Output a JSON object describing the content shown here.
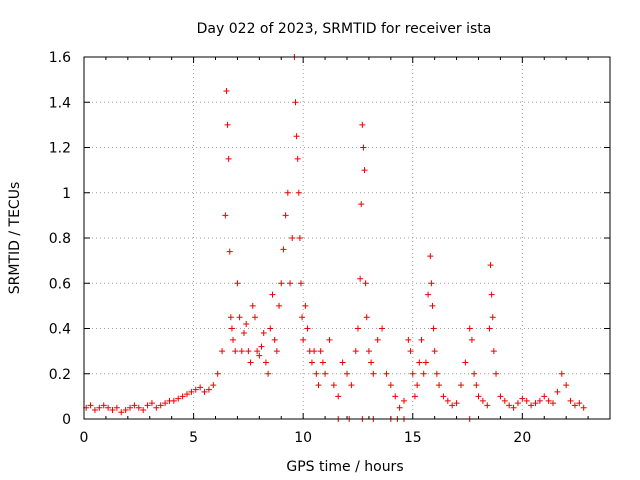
{
  "chart_data": {
    "type": "scatter",
    "title": "Day 022 of 2023, SRMTID for receiver ista",
    "xlabel": "GPS time / hours",
    "ylabel": "SRMTID / TECUs",
    "xlim": [
      0,
      24
    ],
    "ylim": [
      0,
      1.6
    ],
    "x_ticks": [
      "0",
      "5",
      "10",
      "15",
      "20"
    ],
    "y_ticks": [
      "0",
      "0.2",
      "0.4",
      "0.6",
      "0.8",
      "1",
      "1.2",
      "1.4",
      "1.6"
    ],
    "grid": true,
    "marker": "plus",
    "color": "#ee0000",
    "series": [
      {
        "name": "SRMTID",
        "x": [
          0.1,
          0.3,
          0.5,
          0.7,
          0.9,
          1.1,
          1.3,
          1.5,
          1.7,
          1.9,
          2.1,
          2.3,
          2.5,
          2.7,
          2.9,
          3.1,
          3.3,
          3.5,
          3.7,
          3.9,
          4.1,
          4.3,
          4.5,
          4.7,
          4.9,
          5.1,
          5.3,
          5.5,
          5.7,
          5.9,
          6.1,
          6.3,
          6.45,
          6.5,
          6.55,
          6.6,
          6.65,
          6.7,
          6.75,
          6.8,
          6.9,
          7.0,
          7.1,
          7.2,
          7.3,
          7.4,
          7.5,
          7.6,
          7.7,
          7.8,
          7.9,
          8.0,
          8.1,
          8.2,
          8.3,
          8.4,
          8.5,
          8.6,
          8.7,
          8.8,
          8.9,
          9.0,
          9.1,
          9.2,
          9.3,
          9.4,
          9.5,
          9.6,
          9.65,
          9.7,
          9.75,
          9.8,
          9.85,
          9.9,
          9.95,
          10.0,
          10.1,
          10.2,
          10.3,
          10.4,
          10.5,
          10.6,
          10.7,
          10.8,
          10.9,
          11.0,
          11.2,
          11.4,
          11.6,
          11.8,
          12.0,
          12.2,
          12.4,
          12.5,
          12.6,
          12.65,
          12.7,
          12.75,
          12.8,
          12.85,
          12.9,
          13.0,
          13.1,
          13.2,
          13.4,
          13.6,
          13.8,
          14.0,
          14.2,
          14.4,
          14.6,
          14.8,
          14.9,
          15.0,
          15.1,
          15.2,
          15.3,
          15.4,
          15.5,
          15.6,
          15.7,
          15.8,
          15.85,
          15.9,
          15.95,
          16.0,
          16.1,
          16.2,
          16.4,
          16.6,
          16.8,
          17.0,
          17.2,
          17.4,
          17.6,
          17.7,
          17.8,
          17.9,
          18.0,
          18.2,
          18.4,
          18.5,
          18.55,
          18.6,
          18.65,
          18.7,
          18.8,
          19.0,
          19.2,
          19.4,
          19.6,
          19.8,
          20.0,
          20.2,
          20.4,
          20.6,
          20.8,
          21.0,
          21.2,
          21.4,
          21.6,
          21.8,
          22.0,
          22.2,
          22.4,
          22.6,
          22.8,
          11.6,
          12.1,
          12.7,
          13.2,
          14.0,
          14.3,
          14.6,
          17.6
        ],
        "y": [
          0.05,
          0.06,
          0.04,
          0.05,
          0.06,
          0.05,
          0.04,
          0.05,
          0.03,
          0.04,
          0.05,
          0.06,
          0.05,
          0.04,
          0.06,
          0.07,
          0.05,
          0.06,
          0.07,
          0.08,
          0.08,
          0.09,
          0.1,
          0.11,
          0.12,
          0.13,
          0.14,
          0.12,
          0.13,
          0.15,
          0.2,
          0.3,
          0.9,
          1.45,
          1.3,
          1.15,
          0.74,
          0.45,
          0.4,
          0.35,
          0.3,
          0.6,
          0.45,
          0.3,
          0.38,
          0.42,
          0.3,
          0.25,
          0.5,
          0.45,
          0.3,
          0.28,
          0.32,
          0.38,
          0.25,
          0.2,
          0.4,
          0.55,
          0.35,
          0.3,
          0.5,
          0.6,
          0.75,
          0.9,
          1.0,
          0.6,
          0.8,
          1.6,
          1.4,
          1.25,
          1.15,
          1.0,
          0.8,
          0.6,
          0.45,
          0.35,
          0.5,
          0.4,
          0.3,
          0.25,
          0.3,
          0.2,
          0.15,
          0.3,
          0.25,
          0.2,
          0.35,
          0.15,
          0.1,
          0.25,
          0.2,
          0.15,
          0.3,
          0.4,
          0.62,
          0.95,
          1.3,
          1.2,
          1.1,
          0.6,
          0.45,
          0.3,
          0.25,
          0.2,
          0.35,
          0.4,
          0.2,
          0.15,
          0.1,
          0.05,
          0.08,
          0.35,
          0.3,
          0.2,
          0.1,
          0.15,
          0.25,
          0.35,
          0.2,
          0.25,
          0.55,
          0.72,
          0.6,
          0.5,
          0.4,
          0.3,
          0.2,
          0.15,
          0.1,
          0.08,
          0.06,
          0.07,
          0.15,
          0.25,
          0.4,
          0.35,
          0.2,
          0.15,
          0.1,
          0.08,
          0.06,
          0.4,
          0.68,
          0.55,
          0.45,
          0.3,
          0.2,
          0.1,
          0.08,
          0.06,
          0.05,
          0.07,
          0.09,
          0.08,
          0.06,
          0.07,
          0.08,
          0.1,
          0.08,
          0.07,
          0.12,
          0.2,
          0.15,
          0.08,
          0.06,
          0.07,
          0.05,
          0.0,
          0.0,
          0.0,
          0.0,
          0.0,
          0.0,
          0.0,
          0.0
        ]
      }
    ]
  }
}
